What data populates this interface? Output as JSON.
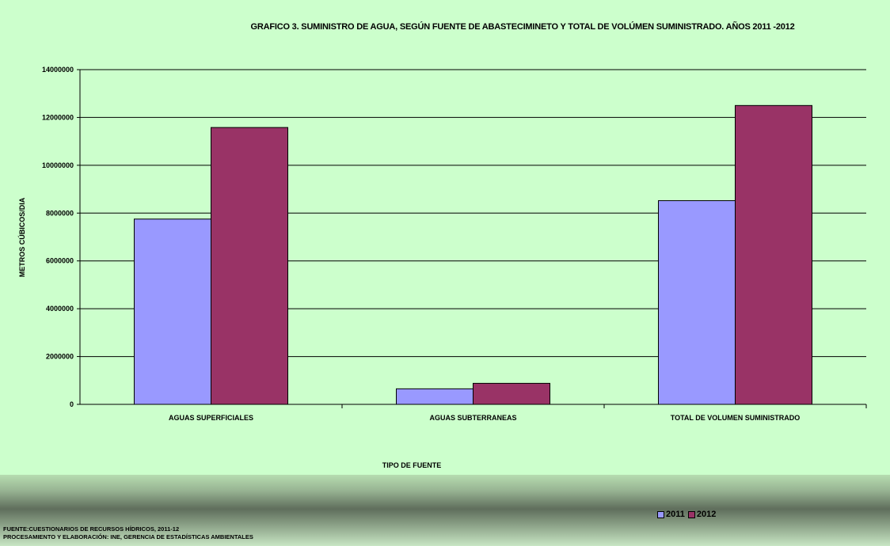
{
  "chart_data": {
    "type": "bar",
    "title": "GRAFICO 3. SUMINISTRO DE  AGUA, SEGÚN FUENTE DE ABASTECIMINETO  Y  TOTAL DE VOLÚMEN SUMINISTRADO. AÑOS 2011 -2012",
    "xlabel": "TIPO DE FUENTE",
    "ylabel": "METROS CÚBICOS/DIA",
    "categories": [
      "AGUAS SUPERFICIALES",
      "AGUAS SUBTERRANEAS",
      "TOTAL DE VOLUMEN SUMINISTRADO"
    ],
    "series": [
      {
        "name": "2011",
        "values": [
          7750000,
          650000,
          8520000
        ],
        "color": "#9999ff"
      },
      {
        "name": "2012",
        "values": [
          11580000,
          880000,
          12500000
        ],
        "color": "#993366"
      }
    ],
    "ylim": [
      0,
      14000000
    ],
    "yticks": [
      "0",
      "2000000",
      "4000000",
      "6000000",
      "8000000",
      "10000000",
      "12000000",
      "14000000"
    ],
    "grid": true,
    "legend_position": "bottom-right"
  },
  "footer": {
    "line1": "FUENTE:CUESTIONARIOS DE  RECURSOS  HÍDRICOS, 2011-12",
    "line2": "PROCESAMIENTO Y ELABORACIÓN: INE, GERENCIA DE ESTADÍSTICAS AMBIENTALES"
  },
  "colors": {
    "background": "#ccffcc",
    "axis": "#000000"
  }
}
